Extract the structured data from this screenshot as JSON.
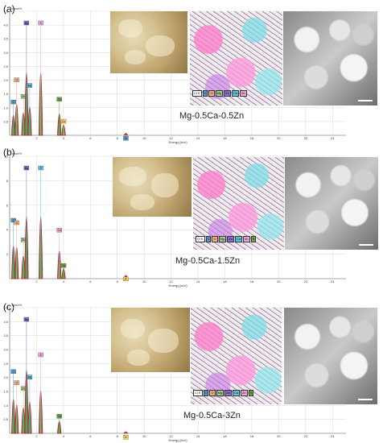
{
  "chart_data": [
    {
      "type": "line",
      "panel_label": "(a)",
      "ylabel_unit": "cps/eV",
      "xlabel": "Energy [keV]",
      "xlim": [
        0,
        25
      ],
      "ylim": [
        0,
        4.5
      ],
      "x_ticks": [
        "2",
        "4",
        "6",
        "8",
        "10",
        "12",
        "14",
        "16",
        "18",
        "20",
        "22",
        "24"
      ],
      "y_ticks": [
        "0.5",
        "1.0",
        "1.5",
        "2.0",
        "2.5",
        "3.0",
        "3.5",
        "4.0",
        "4.5"
      ],
      "peaks": [
        {
          "x": 0.28,
          "y": 1.4
        },
        {
          "x": 0.52,
          "y": 2.2
        },
        {
          "x": 1.02,
          "y": 1.6
        },
        {
          "x": 1.25,
          "y": 4.5
        },
        {
          "x": 1.49,
          "y": 2.0
        },
        {
          "x": 2.31,
          "y": 4.5
        },
        {
          "x": 3.69,
          "y": 1.5
        },
        {
          "x": 4.01,
          "y": 0.7
        },
        {
          "x": 8.64,
          "y": 0.08
        }
      ],
      "peak_tags": [
        "C",
        "O",
        "Zn",
        "Mg",
        "Mg",
        "S",
        "Ca",
        "Ca",
        "Zn"
      ],
      "caption": "Mg-0.5Ca-0.5Zn"
    },
    {
      "type": "line",
      "panel_label": "(b)",
      "ylabel_unit": "cps/eV",
      "xlabel": "Energy [keV]",
      "xlim": [
        0,
        25
      ],
      "ylim": [
        0,
        10
      ],
      "x_ticks": [
        "2",
        "4",
        "6",
        "8",
        "10",
        "12",
        "14",
        "16",
        "18",
        "20",
        "22",
        "24"
      ],
      "y_ticks": [
        "2",
        "4",
        "6",
        "8",
        "10"
      ],
      "peaks": [
        {
          "x": 0.28,
          "y": 5.2
        },
        {
          "x": 0.52,
          "y": 5.0
        },
        {
          "x": 1.02,
          "y": 3.6
        },
        {
          "x": 1.25,
          "y": 10.0
        },
        {
          "x": 2.31,
          "y": 10.0
        },
        {
          "x": 3.69,
          "y": 4.4
        },
        {
          "x": 4.01,
          "y": 1.5
        },
        {
          "x": 8.64,
          "y": 0.4
        }
      ],
      "peak_tags": [
        "C",
        "O",
        "Zn",
        "Mg",
        "S",
        "Ca",
        "Ca",
        "Zn"
      ],
      "caption": "Mg-0.5Ca-1.5Zn"
    },
    {
      "type": "line",
      "panel_label": "(c)",
      "ylabel_unit": "cps/eV",
      "xlabel": "Energy [keV]",
      "xlim": [
        0,
        25
      ],
      "ylim": [
        0,
        4.5
      ],
      "x_ticks": [
        "2",
        "4",
        "6",
        "8",
        "10",
        "12",
        "14",
        "16",
        "18",
        "20",
        "22",
        "24"
      ],
      "y_ticks": [
        "0.5",
        "1.0",
        "1.5",
        "2.0",
        "2.5",
        "3.0",
        "3.5",
        "4.0",
        "4.5"
      ],
      "peaks": [
        {
          "x": 0.28,
          "y": 2.4
        },
        {
          "x": 0.52,
          "y": 2.0
        },
        {
          "x": 1.02,
          "y": 1.8
        },
        {
          "x": 1.25,
          "y": 4.5
        },
        {
          "x": 1.49,
          "y": 2.2
        },
        {
          "x": 2.31,
          "y": 3.0
        },
        {
          "x": 3.69,
          "y": 0.8
        },
        {
          "x": 8.64,
          "y": 0.05
        }
      ],
      "peak_tags": [
        "C",
        "O",
        "Zn",
        "Mg",
        "Mg",
        "S",
        "Ca",
        "Zn"
      ],
      "caption": "Mg-0.5Ca-3Zn"
    }
  ],
  "map_legends": [
    [
      "Cl K",
      "C",
      "O",
      "Mg",
      "Zn",
      "Ca",
      "Zn"
    ],
    [
      "Cl K",
      "C",
      "O",
      "Mg",
      "Zn",
      "Ca",
      "Zn",
      "S"
    ],
    [
      "Cl K",
      "C",
      "O",
      "Mg",
      "Zn",
      "Ca",
      "Zn",
      "S"
    ]
  ],
  "colors": {
    "spectrum_fill": "#3c8c2a",
    "spectrum_line": "#c8102e",
    "grid": "#d9d9d9",
    "tag_colors": [
      "#5b9bd5",
      "#f4b183",
      "#a9d18e",
      "#8e6fd0",
      "#5fc6e6",
      "#f2a7d8",
      "#70ad47",
      "#ffd966"
    ]
  }
}
